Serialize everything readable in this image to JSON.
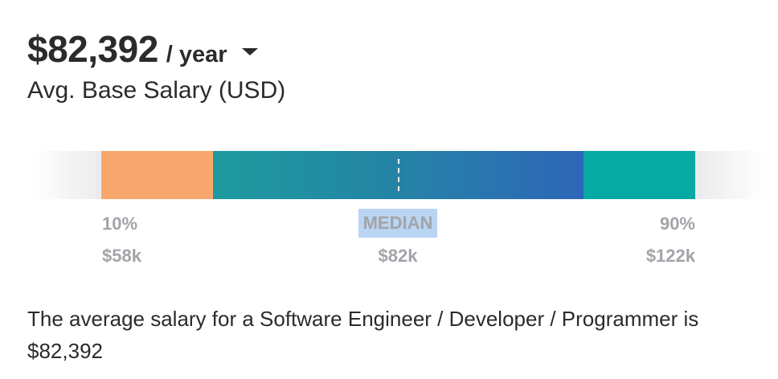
{
  "salary": {
    "amount": "$82,392",
    "period": "/ year",
    "subtitle": "Avg. Base Salary (USD)"
  },
  "range": {
    "low": {
      "percentile": "10%",
      "value": "$58k"
    },
    "median": {
      "label": "MEDIAN",
      "value": "$82k"
    },
    "high": {
      "percentile": "90%",
      "value": "$122k"
    },
    "colors": {
      "low_segment": "#f8a86f",
      "mid_segment_start": "#1d9a9e",
      "mid_segment_end": "#2e66b8",
      "high_segment": "#07a9a3",
      "median_highlight": "#b9d5f3"
    }
  },
  "description": "The average salary for a Software Engineer / Developer / Programmer is $82,392",
  "icons": {
    "period_dropdown": "caret-down-icon"
  }
}
